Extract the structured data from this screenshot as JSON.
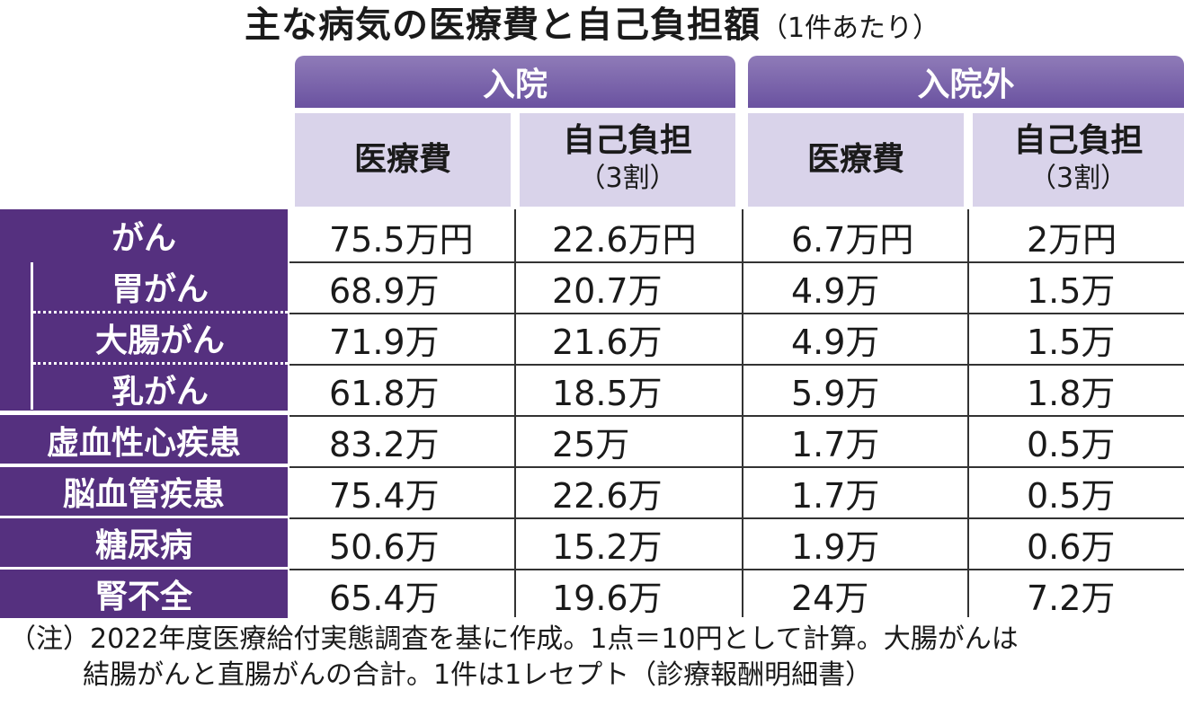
{
  "title": "主な病気の医療費と自己負担額",
  "title_note": "（1件あたり）",
  "groups": [
    "入院",
    "入院外"
  ],
  "columns": {
    "cost": "医療費",
    "burden": "自己負担",
    "burden_note": "（3割）"
  },
  "colors": {
    "header_purple": "#6a52a0",
    "row_head_purple": "#55307f",
    "subheader_lavender": "#d9d3ea"
  },
  "chart_data": {
    "type": "table",
    "title": "主な病気の医療費と自己負担額",
    "subtitle": "（1件あたり）",
    "column_groups": [
      {
        "name": "入院",
        "columns": [
          "医療費",
          "自己負担（3割）"
        ]
      },
      {
        "name": "入院外",
        "columns": [
          "医療費",
          "自己負担（3割）"
        ]
      }
    ],
    "rows": [
      {
        "label": "がん",
        "values": [
          "75.5万円",
          "22.6万円",
          "6.7万円",
          "2万円"
        ]
      },
      {
        "label": "胃がん",
        "values": [
          "68.9万",
          "20.7万",
          "4.9万",
          "1.5万"
        ]
      },
      {
        "label": "大腸がん",
        "values": [
          "71.9万",
          "21.6万",
          "4.9万",
          "1.5万"
        ]
      },
      {
        "label": "乳がん",
        "values": [
          "61.8万",
          "18.5万",
          "5.9万",
          "1.8万"
        ]
      },
      {
        "label": "虚血性心疾患",
        "values": [
          "83.2万",
          "25万",
          "1.7万",
          "0.5万"
        ]
      },
      {
        "label": "脳血管疾患",
        "values": [
          "75.4万",
          "22.6万",
          "1.7万",
          "0.5万"
        ]
      },
      {
        "label": "糖尿病",
        "values": [
          "50.6万",
          "15.2万",
          "1.9万",
          "0.6万"
        ]
      },
      {
        "label": "腎不全",
        "values": [
          "65.4万",
          "19.6万",
          "24万",
          "7.2万"
        ]
      }
    ]
  },
  "footnote": {
    "line1": "（注）2022年度医療給付実態調査を基に作成。1点＝10円として計算。大腸がんは",
    "line2": "結腸がんと直腸がんの合計。1件は1レセプト（診療報酬明細書）"
  }
}
